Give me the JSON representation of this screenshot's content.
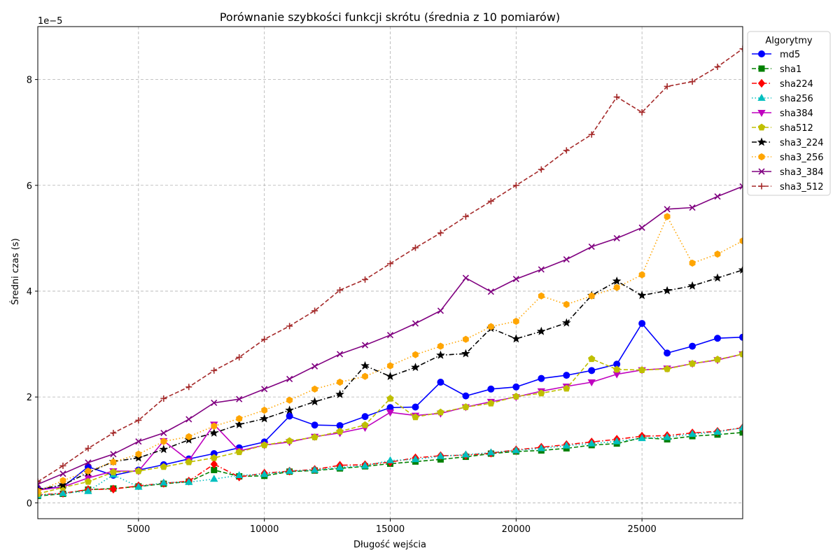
{
  "chart_data": {
    "type": "line",
    "title": "Porównanie szybkości funkcji skrótu (średnia z 10 pomiarów)",
    "xlabel": "Długość wejścia",
    "ylabel": "Średni czas (s)",
    "y_offset_label": "1e−5",
    "xlim": [
      1000,
      29000
    ],
    "ylim": [
      -0.3,
      9.0
    ],
    "y_scale_multiplier": "1e-5",
    "x_ticks": [
      5000,
      10000,
      15000,
      20000,
      25000
    ],
    "x_tick_labels": [
      "5000",
      "10000",
      "15000",
      "20000",
      "25000"
    ],
    "y_ticks": [
      0,
      2,
      4,
      6,
      8
    ],
    "y_tick_labels": [
      "0",
      "2",
      "4",
      "6",
      "8"
    ],
    "grid": true,
    "legend": {
      "title": "Algorytmy",
      "placement": "upper right, outside"
    },
    "x": [
      1000,
      2000,
      3000,
      4000,
      5000,
      6000,
      7000,
      8000,
      9000,
      10000,
      11000,
      12000,
      13000,
      14000,
      15000,
      16000,
      17000,
      18000,
      19000,
      20000,
      21000,
      22000,
      23000,
      24000,
      25000,
      26000,
      27000,
      28000,
      29000
    ],
    "series": [
      {
        "name": "md5",
        "color": "#0000ff",
        "dash": "solid",
        "marker": "circle",
        "values": [
          0.26,
          0.3,
          0.68,
          0.52,
          0.62,
          0.72,
          0.83,
          0.93,
          1.04,
          1.15,
          1.64,
          1.47,
          1.46,
          1.63,
          1.8,
          1.81,
          2.28,
          2.02,
          2.15,
          2.19,
          2.35,
          2.41,
          2.5,
          2.62,
          3.39,
          2.83,
          2.96,
          3.11,
          3.13
        ]
      },
      {
        "name": "sha1",
        "color": "#008000",
        "dash": "dashed",
        "marker": "square",
        "values": [
          0.13,
          0.17,
          0.25,
          0.27,
          0.31,
          0.36,
          0.4,
          0.62,
          0.5,
          0.51,
          0.59,
          0.61,
          0.65,
          0.69,
          0.74,
          0.78,
          0.82,
          0.87,
          0.93,
          0.97,
          0.99,
          1.03,
          1.09,
          1.12,
          1.23,
          1.2,
          1.26,
          1.29,
          1.33
        ]
      },
      {
        "name": "sha224",
        "color": "#ff0000",
        "dash": "dashdot",
        "marker": "diamond",
        "values": [
          0.15,
          0.18,
          0.25,
          0.26,
          0.32,
          0.37,
          0.41,
          0.73,
          0.49,
          0.56,
          0.6,
          0.63,
          0.71,
          0.72,
          0.77,
          0.85,
          0.89,
          0.9,
          0.94,
          1.0,
          1.05,
          1.1,
          1.15,
          1.2,
          1.26,
          1.27,
          1.32,
          1.35,
          1.42
        ]
      },
      {
        "name": "sha256",
        "color": "#00bfbf",
        "dash": "dotted",
        "marker": "triangle-up",
        "values": [
          0.14,
          0.18,
          0.22,
          0.53,
          0.3,
          0.38,
          0.39,
          0.45,
          0.52,
          0.54,
          0.6,
          0.62,
          0.67,
          0.7,
          0.8,
          0.82,
          0.88,
          0.91,
          0.95,
          0.99,
          1.03,
          1.08,
          1.12,
          1.16,
          1.22,
          1.24,
          1.3,
          1.34,
          1.42
        ]
      },
      {
        "name": "sha384",
        "color": "#bf00bf",
        "dash": "solid",
        "marker": "triangle-down",
        "values": [
          0.24,
          0.3,
          0.47,
          0.6,
          0.6,
          1.17,
          0.8,
          1.48,
          0.98,
          1.09,
          1.15,
          1.25,
          1.32,
          1.42,
          1.71,
          1.65,
          1.69,
          1.81,
          1.91,
          2.0,
          2.11,
          2.2,
          2.28,
          2.43,
          2.51,
          2.54,
          2.63,
          2.7,
          2.81
        ]
      },
      {
        "name": "sha512",
        "color": "#bfbf00",
        "dash": "dashed",
        "marker": "pentagon",
        "values": [
          0.17,
          0.29,
          0.4,
          0.58,
          0.6,
          0.68,
          0.77,
          0.85,
          0.96,
          1.09,
          1.17,
          1.24,
          1.35,
          1.47,
          1.97,
          1.62,
          1.71,
          1.81,
          1.88,
          2.01,
          2.07,
          2.16,
          2.72,
          2.52,
          2.51,
          2.53,
          2.63,
          2.71,
          2.81
        ]
      },
      {
        "name": "sha3_224",
        "color": "#000000",
        "dash": "dashdot",
        "marker": "star",
        "values": [
          0.25,
          0.34,
          0.57,
          0.78,
          0.85,
          1.01,
          1.19,
          1.32,
          1.48,
          1.59,
          1.75,
          1.91,
          2.05,
          2.59,
          2.39,
          2.56,
          2.79,
          2.82,
          3.3,
          3.1,
          3.24,
          3.4,
          3.92,
          4.19,
          3.92,
          4.01,
          4.1,
          4.25,
          4.4
        ]
      },
      {
        "name": "sha3_256",
        "color": "#ffa500",
        "dash": "dotted",
        "marker": "hexagon",
        "values": [
          0.22,
          0.42,
          0.6,
          0.77,
          0.92,
          1.16,
          1.25,
          1.45,
          1.59,
          1.75,
          1.94,
          2.15,
          2.28,
          2.39,
          2.59,
          2.8,
          2.96,
          3.09,
          3.33,
          3.43,
          3.91,
          3.75,
          3.91,
          4.07,
          4.31,
          5.41,
          4.53,
          4.7,
          4.95
        ]
      },
      {
        "name": "sha3_384",
        "color": "#800080",
        "dash": "solid",
        "marker": "x",
        "values": [
          0.35,
          0.55,
          0.76,
          0.92,
          1.16,
          1.32,
          1.58,
          1.89,
          1.96,
          2.15,
          2.34,
          2.58,
          2.81,
          2.98,
          3.17,
          3.39,
          3.63,
          4.25,
          3.99,
          4.23,
          4.41,
          4.6,
          4.84,
          5.0,
          5.2,
          5.55,
          5.58,
          5.79,
          5.98
        ]
      },
      {
        "name": "sha3_512",
        "color": "#a52a2a",
        "dash": "dashed",
        "marker": "plus",
        "values": [
          0.4,
          0.7,
          1.03,
          1.32,
          1.56,
          1.97,
          2.19,
          2.5,
          2.75,
          3.09,
          3.34,
          3.63,
          4.02,
          4.22,
          4.52,
          4.82,
          5.1,
          5.41,
          5.7,
          6.0,
          6.3,
          6.66,
          6.96,
          7.67,
          7.38,
          7.87,
          7.96,
          8.24,
          8.58
        ]
      }
    ]
  }
}
